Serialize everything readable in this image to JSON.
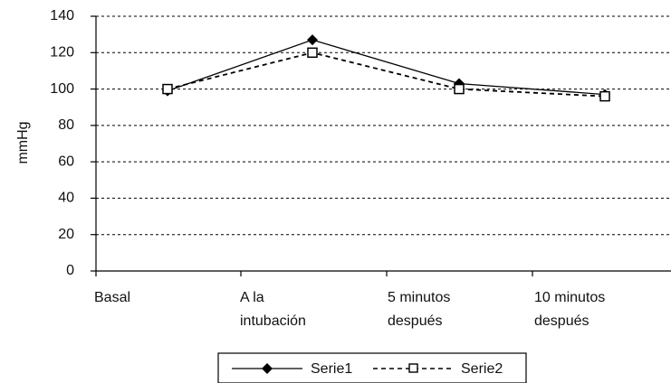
{
  "chart_data": {
    "type": "line",
    "ylabel": "mmHg",
    "ylim": [
      0,
      140
    ],
    "ytick_step": 20,
    "grid": true,
    "legend_position": "bottom",
    "categories": [
      [
        "Basal"
      ],
      [
        "A la",
        "intubación"
      ],
      [
        "5 minutos",
        "después"
      ],
      [
        "10 minutos",
        "después"
      ]
    ],
    "series": [
      {
        "name": "Serie1",
        "values": [
          99,
          127,
          103,
          97
        ],
        "line_style": "solid",
        "marker": "diamond",
        "color": "#000000"
      },
      {
        "name": "Serie2",
        "values": [
          100,
          120,
          100,
          96
        ],
        "line_style": "dashed",
        "marker": "square-open",
        "color": "#000000"
      }
    ]
  }
}
